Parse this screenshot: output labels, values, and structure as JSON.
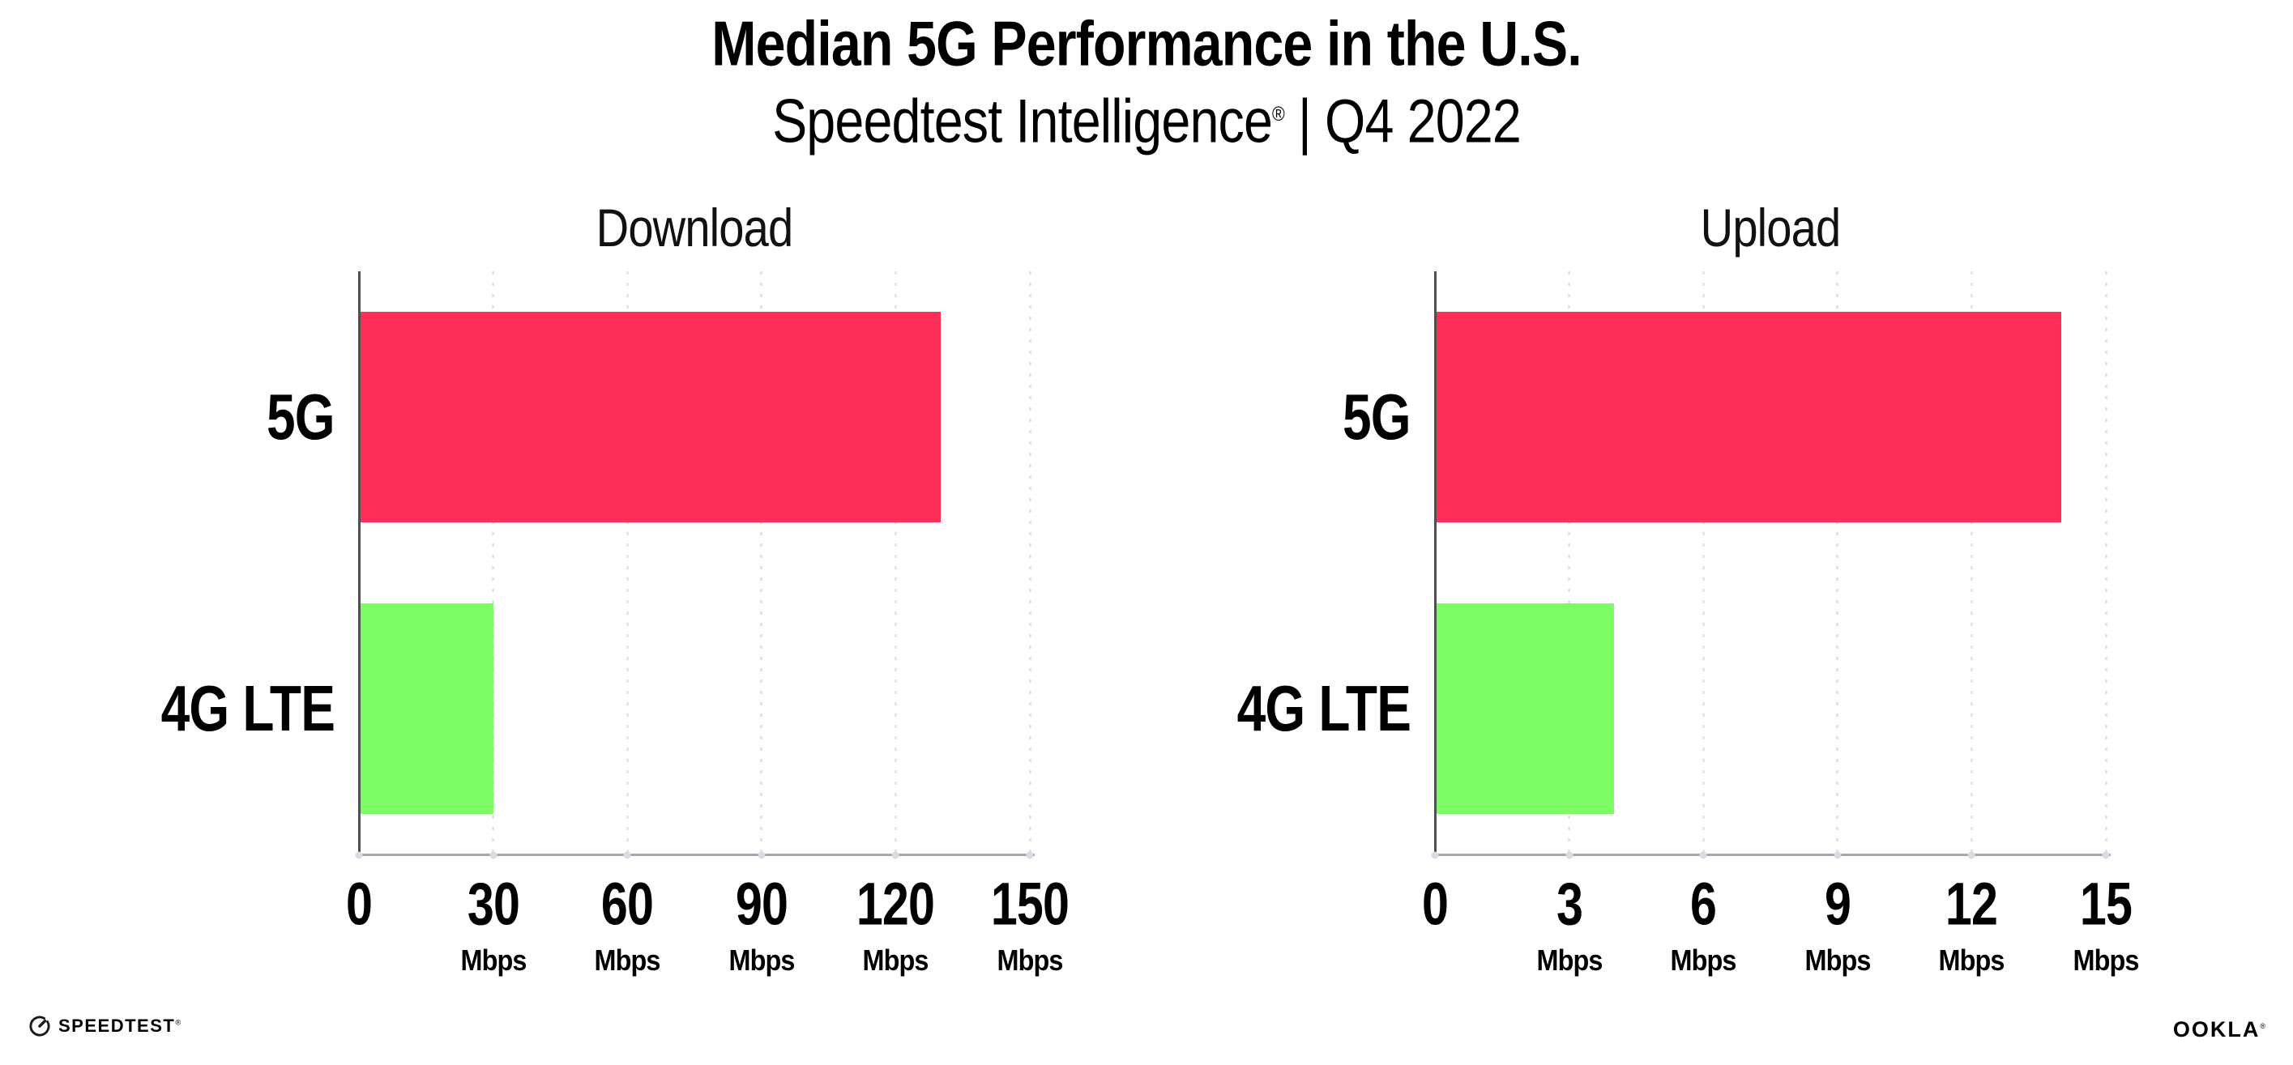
{
  "header": {
    "title": "Median 5G Performance in the U.S.",
    "subtitle_brand": "Speedtest Intelligence",
    "subtitle_reg": "®",
    "subtitle_rest": " | Q4 2022"
  },
  "colors": {
    "bar_5g": "#fd2e58",
    "bar_4g_lte": "#7efc66",
    "grid_dots": "#e1e3ee",
    "x_axis_line": "#a8a8a8",
    "y_axis_line": "#4f4f4f",
    "text": "#000000"
  },
  "chart_data": [
    {
      "type": "bar",
      "orientation": "horizontal",
      "title": "Download",
      "categories": [
        "5G",
        "4G LTE"
      ],
      "values": [
        130,
        30
      ],
      "unit": "Mbps",
      "xlim": [
        0,
        150
      ],
      "xticks": [
        0,
        30,
        60,
        90,
        120,
        150
      ],
      "tick_unit_label": "Mbps",
      "grid": "dotted-vertical",
      "legend": "none",
      "bar_colors": [
        "#fd2e58",
        "#7efc66"
      ]
    },
    {
      "type": "bar",
      "orientation": "horizontal",
      "title": "Upload",
      "categories": [
        "5G",
        "4G LTE"
      ],
      "values": [
        14,
        4
      ],
      "unit": "Mbps",
      "xlim": [
        0,
        15
      ],
      "xticks": [
        0,
        3,
        6,
        9,
        12,
        15
      ],
      "tick_unit_label": "Mbps",
      "grid": "dotted-vertical",
      "legend": "none",
      "bar_colors": [
        "#fd2e58",
        "#7efc66"
      ]
    }
  ],
  "footer": {
    "speedtest_label": "SPEEDTEST",
    "speedtest_mark": "®",
    "ookla_label": "OOKLA",
    "ookla_mark": "®"
  }
}
